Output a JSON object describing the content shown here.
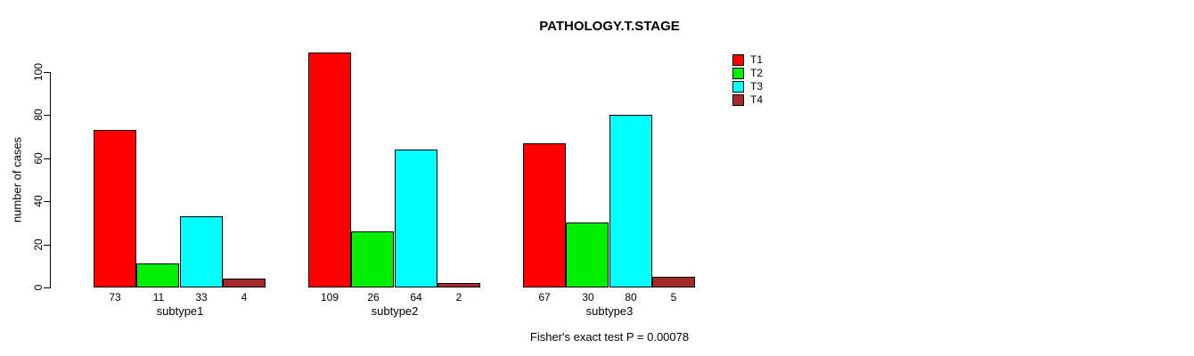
{
  "chart_data": {
    "type": "bar",
    "grouped": true,
    "title": "PATHOLOGY.T.STAGE",
    "xlabel": "",
    "ylabel": "number of cases",
    "ylim": [
      0,
      100
    ],
    "yticks": [
      0,
      20,
      40,
      60,
      80,
      100
    ],
    "grid": false,
    "legend_position": "top-right",
    "bar_value_labels_shown": true,
    "categories": [
      "subtype1",
      "subtype2",
      "subtype3"
    ],
    "series": [
      {
        "name": "T1",
        "color": "#ff0000",
        "values": [
          73,
          109,
          67
        ]
      },
      {
        "name": "T2",
        "color": "#00ee00",
        "values": [
          11,
          26,
          30
        ]
      },
      {
        "name": "T3",
        "color": "#00ffff",
        "values": [
          33,
          64,
          80
        ]
      },
      {
        "name": "T4",
        "color": "#a52a2a",
        "values": [
          4,
          2,
          5
        ]
      }
    ],
    "annotation": "Fisher's exact test P = 0.00078"
  },
  "colors": {
    "axis": "#000000",
    "text": "#000000",
    "background": "#ffffff"
  }
}
